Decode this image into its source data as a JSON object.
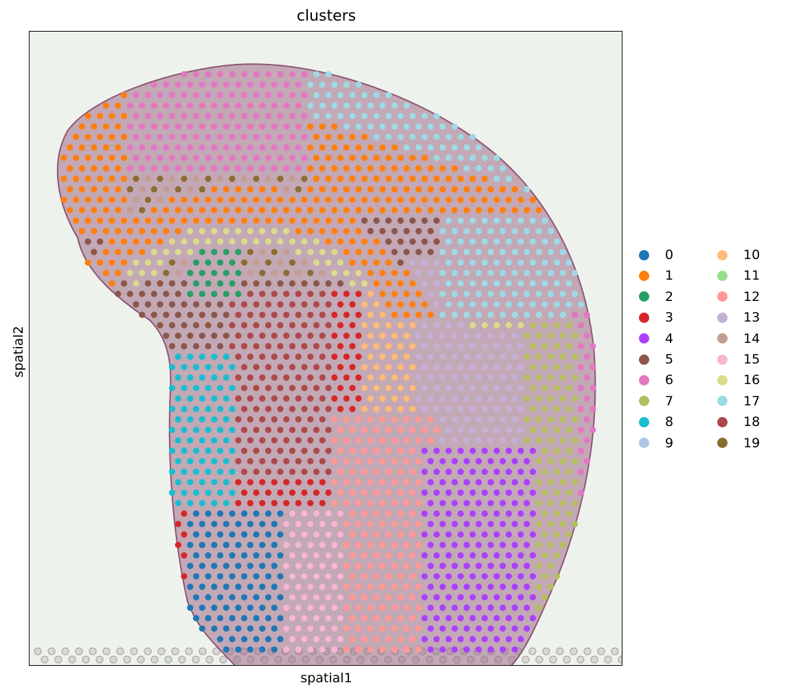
{
  "figure": {
    "title": "clusters",
    "xlabel": "spatial1",
    "ylabel": "spatial2"
  },
  "legend": {
    "placement": "right",
    "columns": 2,
    "items": [
      {
        "label": "0",
        "color": "#1f77b4"
      },
      {
        "label": "1",
        "color": "#ff7f0e"
      },
      {
        "label": "2",
        "color": "#279e68"
      },
      {
        "label": "3",
        "color": "#d62728"
      },
      {
        "label": "4",
        "color": "#aa40fc"
      },
      {
        "label": "5",
        "color": "#8c564b"
      },
      {
        "label": "6",
        "color": "#e377c2"
      },
      {
        "label": "7",
        "color": "#b5bd61"
      },
      {
        "label": "8",
        "color": "#17becf"
      },
      {
        "label": "9",
        "color": "#aec7e8"
      },
      {
        "label": "10",
        "color": "#ffbb78"
      },
      {
        "label": "11",
        "color": "#98df8a"
      },
      {
        "label": "12",
        "color": "#ff9896"
      },
      {
        "label": "13",
        "color": "#c5b0d5"
      },
      {
        "label": "14",
        "color": "#c49c94"
      },
      {
        "label": "15",
        "color": "#f7b6d2"
      },
      {
        "label": "16",
        "color": "#dbdb8d"
      },
      {
        "label": "17",
        "color": "#9edae5"
      },
      {
        "label": "18",
        "color": "#ad494a"
      },
      {
        "label": "19",
        "color": "#8c6d31"
      }
    ]
  },
  "chart_data": {
    "type": "scatter",
    "title": "clusters",
    "xlabel": "spatial1",
    "ylabel": "spatial2",
    "xticks": [],
    "yticks": [],
    "grid": false,
    "background": "tissue histology image",
    "legend_placement": "right",
    "series": [
      {
        "name": "0",
        "color": "#1f77b4"
      },
      {
        "name": "1",
        "color": "#ff7f0e"
      },
      {
        "name": "2",
        "color": "#279e68"
      },
      {
        "name": "3",
        "color": "#d62728"
      },
      {
        "name": "4",
        "color": "#aa40fc"
      },
      {
        "name": "5",
        "color": "#8c564b"
      },
      {
        "name": "6",
        "color": "#e377c2"
      },
      {
        "name": "7",
        "color": "#b5bd61"
      },
      {
        "name": "8",
        "color": "#17becf"
      },
      {
        "name": "9",
        "color": "#aec7e8"
      },
      {
        "name": "10",
        "color": "#ffbb78"
      },
      {
        "name": "11",
        "color": "#98df8a"
      },
      {
        "name": "12",
        "color": "#ff9896"
      },
      {
        "name": "13",
        "color": "#c5b0d5"
      },
      {
        "name": "14",
        "color": "#c49c94"
      },
      {
        "name": "15",
        "color": "#f7b6d2"
      },
      {
        "name": "16",
        "color": "#dbdb8d"
      },
      {
        "name": "17",
        "color": "#9edae5"
      },
      {
        "name": "18",
        "color": "#ad494a"
      },
      {
        "name": "19",
        "color": "#8c6d31"
      }
    ]
  }
}
